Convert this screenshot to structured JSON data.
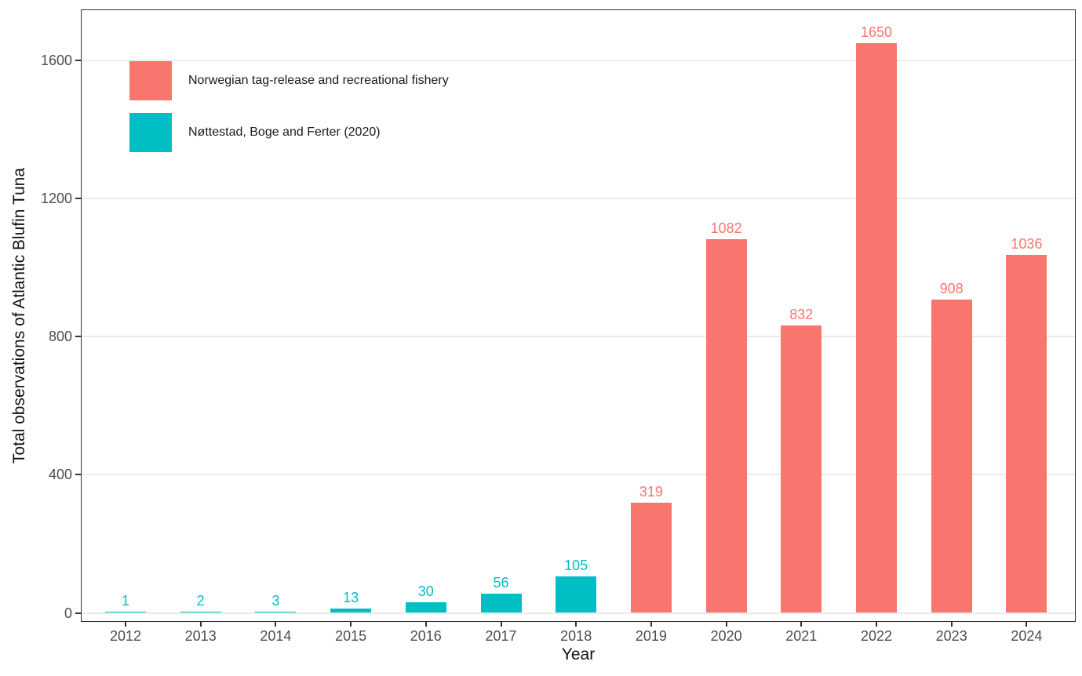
{
  "chart_data": {
    "type": "bar",
    "title": "",
    "xlabel": "Year",
    "ylabel": "Total observations of Atlantic Blufin Tuna",
    "categories": [
      "2012",
      "2013",
      "2014",
      "2015",
      "2016",
      "2017",
      "2018",
      "2019",
      "2020",
      "2021",
      "2022",
      "2023",
      "2024"
    ],
    "series": [
      {
        "name": "Norwegian tag-release and recreational fishery",
        "color": "#F8766D"
      },
      {
        "name": "Nøttestad, Boge and Ferter (2020)",
        "color": "#00BFC4"
      }
    ],
    "bar_series_index": [
      1,
      1,
      1,
      1,
      1,
      1,
      1,
      0,
      0,
      0,
      0,
      0,
      0
    ],
    "values": [
      1,
      2,
      3,
      13,
      30,
      56,
      105,
      319,
      1082,
      832,
      1650,
      908,
      1036
    ],
    "bar_value_labels": [
      1,
      2,
      3,
      13,
      30,
      56,
      105,
      319,
      1082,
      832,
      1650,
      908,
      1036
    ],
    "yticks": [
      0,
      400,
      800,
      1200,
      1600
    ],
    "ylim": [
      0,
      1750
    ],
    "grid": "horizontal-major-only",
    "legend_position": "inside-top-left",
    "background": "#FFFFFF",
    "axis_text_color": "#4D4D4D",
    "grid_color": "#EBEBEB",
    "panel_border_color": "#2E2E2E"
  }
}
